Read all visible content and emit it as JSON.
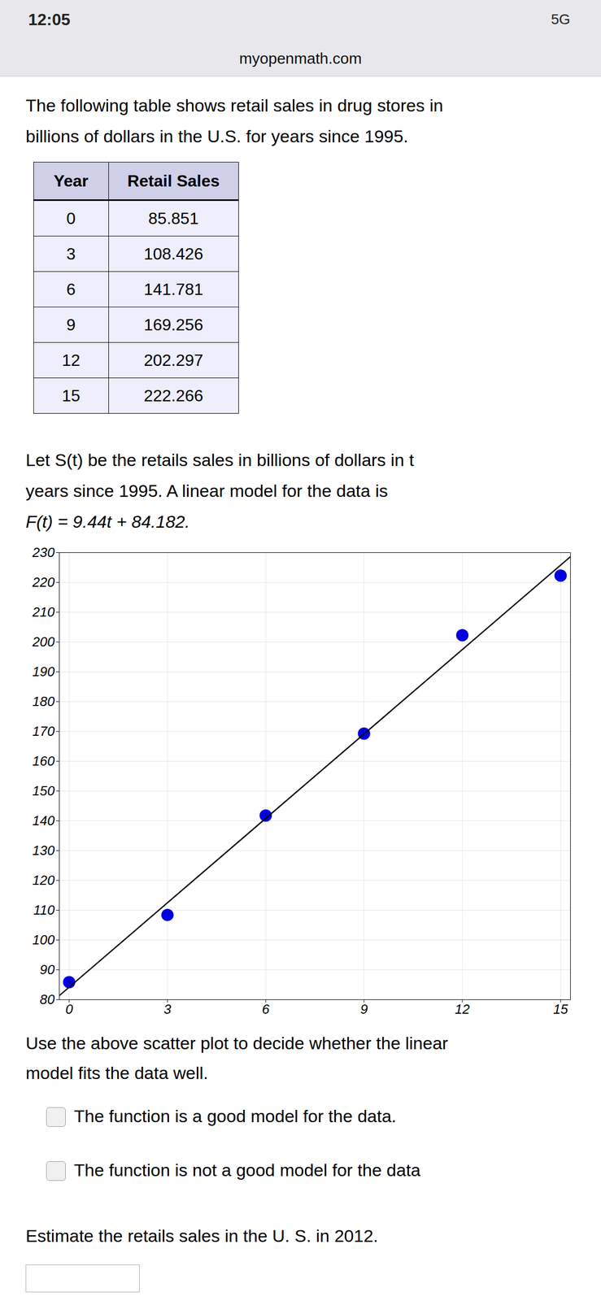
{
  "page": {
    "status_time": "12:05",
    "status_right": "5G",
    "website": "myopenmath.com",
    "intro": [
      "The following table shows retail sales in drug stores in",
      "billions of dollars in the U.S. for years since 1995."
    ],
    "table": {
      "headers": [
        "Year",
        "Retail Sales"
      ],
      "years": [
        0,
        3,
        6,
        9,
        12,
        15
      ],
      "sales": [
        85.851,
        108.426,
        141.781,
        169.256,
        202.297,
        222.266
      ]
    },
    "let_text": [
      "Let S(t) be the retails sales in billions of dollars in t",
      "years since 1995. A linear model for the data is",
      "F(t) = 9.44t + 84.182."
    ],
    "question": [
      "Use the above scatter plot to decide whether the linear",
      "model fits the data well."
    ],
    "options": [
      "The function is a good model for the data.",
      "The function is not a good model for the data"
    ],
    "estimate": "Estimate the retails sales in the U. S. in 2012."
  },
  "chart_data": {
    "type": "scatter",
    "series": [
      {
        "type": "scatter",
        "color": "#0000dd",
        "x": [
          0,
          3,
          6,
          9,
          12,
          15
        ],
        "values": [
          85.851,
          108.426,
          141.781,
          169.256,
          202.297,
          222.266
        ]
      },
      {
        "type": "line",
        "color": "#000000",
        "x": [
          -0.3,
          15.3
        ],
        "values": [
          81.35,
          228.614
        ]
      }
    ],
    "xlim": [
      -0.3,
      15.3
    ],
    "ylim": [
      80,
      230
    ],
    "xticks": [
      0,
      3,
      6,
      9,
      12,
      15
    ],
    "yticks": [
      80,
      90,
      100,
      110,
      120,
      130,
      140,
      150,
      160,
      170,
      180,
      190,
      200,
      210,
      220,
      230
    ],
    "grid": true
  }
}
